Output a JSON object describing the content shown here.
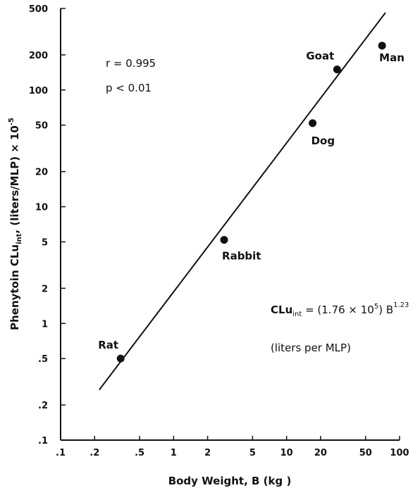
{
  "chart_data": {
    "type": "scatter",
    "title": "",
    "x_scale": "log",
    "y_scale": "log",
    "xlim": [
      0.1,
      100
    ],
    "ylim": [
      0.1,
      500
    ],
    "xlabel": "Body Weight, B (kg )",
    "ylabel": {
      "prefix": "Phenytoin ",
      "symbol": "CLu",
      "subscript": "int",
      "suffix": ", (liters/MLP) × 10",
      "exponent": "-5"
    },
    "x_ticks": [
      {
        "value": 0.1,
        "label": ".1"
      },
      {
        "value": 0.2,
        "label": ".2"
      },
      {
        "value": 0.5,
        "label": ".5"
      },
      {
        "value": 1,
        "label": "1"
      },
      {
        "value": 2,
        "label": "2"
      },
      {
        "value": 5,
        "label": "5"
      },
      {
        "value": 10,
        "label": "10"
      },
      {
        "value": 20,
        "label": "20"
      },
      {
        "value": 50,
        "label": "50"
      },
      {
        "value": 100,
        "label": "100"
      }
    ],
    "y_ticks": [
      {
        "value": 0.1,
        "label": ".1"
      },
      {
        "value": 0.2,
        "label": ".2"
      },
      {
        "value": 0.5,
        "label": ".5"
      },
      {
        "value": 1,
        "label": "1"
      },
      {
        "value": 2,
        "label": "2"
      },
      {
        "value": 5,
        "label": "5"
      },
      {
        "value": 10,
        "label": "10"
      },
      {
        "value": 20,
        "label": "20"
      },
      {
        "value": 50,
        "label": "50"
      },
      {
        "value": 100,
        "label": "100"
      },
      {
        "value": 200,
        "label": "200"
      },
      {
        "value": 500,
        "label": "500"
      }
    ],
    "points": [
      {
        "label": "Rat",
        "x": 0.34,
        "y": 0.5
      },
      {
        "label": "Rabbit",
        "x": 2.8,
        "y": 5.2
      },
      {
        "label": "Dog",
        "x": 17,
        "y": 52
      },
      {
        "label": "Goat",
        "x": 28,
        "y": 150
      },
      {
        "label": "Man",
        "x": 70,
        "y": 240
      }
    ],
    "fit_line": {
      "x": [
        0.22,
        75
      ],
      "y": [
        0.27,
        460
      ]
    },
    "annotations": {
      "r": "r = 0.995",
      "p": "p < 0.01",
      "eq_symbol": "CLu",
      "eq_sub": "int",
      "eq_main": " = (1.76 × 10",
      "eq_exp1": "5",
      "eq_tail": ") B",
      "eq_exp2": "1.23",
      "units": "(liters per MLP)"
    }
  }
}
